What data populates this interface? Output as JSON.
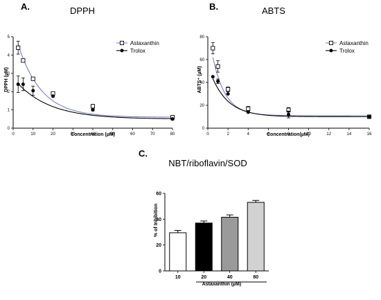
{
  "colors": {
    "astaxanthin_line": "#7b7fc9",
    "trolox_line": "#000000",
    "bar_fills": [
      "#ffffff",
      "#000000",
      "#9a9a9a",
      "#d2d2d2"
    ]
  },
  "chart_data": [
    {
      "id": "A",
      "type": "scatter",
      "panel_label": "A.",
      "title": "DPPH",
      "xlabel": "Concentration (µM)",
      "ylabel": "DPPH (µM)",
      "xlim": [
        0,
        80
      ],
      "ylim": [
        0,
        5
      ],
      "xticks": [
        0,
        10,
        20,
        30,
        40,
        50,
        60,
        70,
        80
      ],
      "yticks": [
        0,
        1,
        2,
        3,
        4,
        5
      ],
      "legend_position": "top-right",
      "series": [
        {
          "name": "Astaxanthin",
          "marker": "open-square",
          "line_color": "#7b7fc9",
          "x": [
            2.5,
            5,
            10,
            20,
            40,
            80
          ],
          "y": [
            4.4,
            3.7,
            2.7,
            1.9,
            1.2,
            0.6
          ],
          "err": [
            0.35,
            0,
            0,
            0,
            0.1,
            0.05
          ],
          "fit": {
            "plateau": 0.6,
            "span": 4.9,
            "k": 0.085
          }
        },
        {
          "name": "Trolox",
          "marker": "filled-circle",
          "line_color": "#000000",
          "x": [
            2.5,
            5,
            10,
            20,
            40,
            80
          ],
          "y": [
            2.4,
            2.4,
            2.05,
            1.75,
            1.0,
            0.5
          ],
          "err": [
            0.45,
            0.35,
            0.25,
            0,
            0.05,
            0.05
          ],
          "fit": {
            "plateau": 0.5,
            "span": 2.25,
            "k": 0.06
          }
        }
      ]
    },
    {
      "id": "B",
      "type": "scatter",
      "panel_label": "B.",
      "title": "ABTS",
      "xlabel": "Concentration(µM)",
      "ylabel": "ABTS⁺ (µM)",
      "xlim": [
        0,
        16
      ],
      "ylim": [
        0,
        80
      ],
      "xticks": [
        0,
        2,
        4,
        6,
        8,
        10,
        12,
        14,
        16
      ],
      "yticks": [
        0,
        20,
        40,
        60,
        80
      ],
      "legend_position": "top-right",
      "series": [
        {
          "name": "Astaxanthin",
          "marker": "open-square",
          "line_color": "#7b7fc9",
          "x": [
            0.5,
            1,
            2,
            4,
            8,
            16
          ],
          "y": [
            70,
            54,
            34,
            17,
            16,
            10
          ],
          "err": [
            5,
            5,
            2,
            2,
            2,
            1
          ],
          "fit": {
            "plateau": 11,
            "span": 76,
            "k": 0.8
          }
        },
        {
          "name": "Trolox",
          "marker": "filled-circle",
          "line_color": "#000000",
          "x": [
            0.5,
            1,
            2,
            4,
            8,
            16
          ],
          "y": [
            45,
            41,
            30,
            14,
            12,
            10
          ],
          "err": [
            0,
            2,
            0,
            0,
            3,
            0
          ],
          "fit": {
            "plateau": 10,
            "span": 45,
            "k": 0.6
          }
        }
      ]
    },
    {
      "id": "C",
      "type": "bar",
      "panel_label": "C.",
      "title": "NBT/riboflavin/SOD",
      "xlabel": "Astaxanthin (µM)",
      "ylabel": "% of Inhibition",
      "ylim": [
        0,
        60
      ],
      "yticks": [
        0,
        20,
        40,
        60
      ],
      "categories": [
        "10",
        "20",
        "40",
        "80"
      ],
      "values": [
        29.5,
        37,
        41.5,
        53
      ],
      "err": [
        1.8,
        1.6,
        1.8,
        1.5
      ]
    }
  ]
}
